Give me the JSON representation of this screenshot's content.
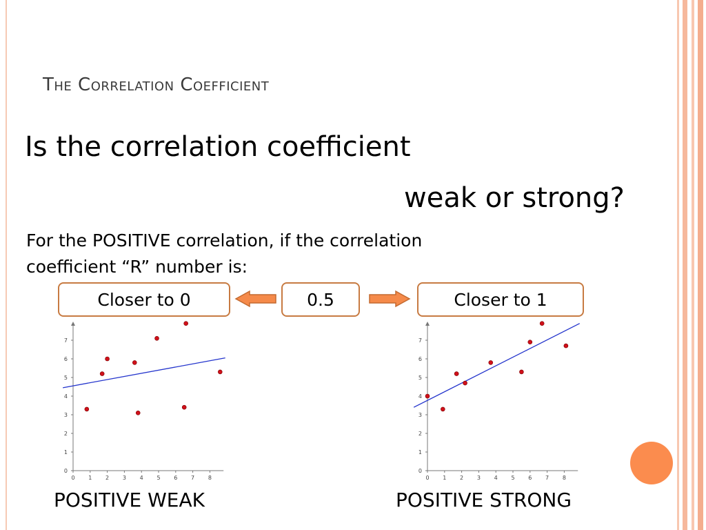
{
  "slide": {
    "title": "The Correlation Coefficient",
    "question_line1": "Is the correlation coefficient",
    "question_line2": "weak or strong?",
    "body_line1": "For the POSITIVE correlation, if the correlation",
    "body_line2": "coefficient “R” number is:"
  },
  "scale": {
    "left_label": "Closer to 0",
    "middle_label": "0.5",
    "right_label": "Closer to 1"
  },
  "colors": {
    "accent_orange": "#fb8c4e",
    "box_border": "#c77a41",
    "arrow_fill": "#f58a4a",
    "point_red": "#d0101a",
    "trend_blue": "#2233cc"
  },
  "chart_data": [
    {
      "type": "scatter",
      "title": "",
      "caption": "POSITIVE WEAK",
      "xlim": [
        0,
        8.8
      ],
      "ylim": [
        0,
        7.8
      ],
      "x_ticks": [
        "0",
        "1",
        "2",
        "3",
        "4",
        "5",
        "6",
        "7",
        "8"
      ],
      "y_ticks": [
        "0",
        "1",
        "2",
        "3",
        "4",
        "5",
        "6",
        "7"
      ],
      "points": [
        {
          "x": 0.8,
          "y": 3.3
        },
        {
          "x": 1.7,
          "y": 5.2
        },
        {
          "x": 2.0,
          "y": 6.0
        },
        {
          "x": 3.6,
          "y": 5.8
        },
        {
          "x": 3.8,
          "y": 3.1
        },
        {
          "x": 4.9,
          "y": 7.1
        },
        {
          "x": 6.5,
          "y": 3.4
        },
        {
          "x": 6.6,
          "y": 7.9
        },
        {
          "x": 8.6,
          "y": 5.3
        }
      ],
      "trendline": {
        "x1": -0.6,
        "y1": 4.45,
        "x2": 8.9,
        "y2": 6.05
      }
    },
    {
      "type": "scatter",
      "title": "",
      "caption": "POSITIVE STRONG",
      "xlim": [
        0,
        8.8
      ],
      "ylim": [
        0,
        7.8
      ],
      "x_ticks": [
        "0",
        "1",
        "2",
        "3",
        "4",
        "5",
        "6",
        "7",
        "8"
      ],
      "y_ticks": [
        "0",
        "1",
        "2",
        "3",
        "4",
        "5",
        "6",
        "7"
      ],
      "points": [
        {
          "x": 0.0,
          "y": 4.0
        },
        {
          "x": 0.9,
          "y": 3.3
        },
        {
          "x": 1.7,
          "y": 5.2
        },
        {
          "x": 2.2,
          "y": 4.7
        },
        {
          "x": 3.7,
          "y": 5.8
        },
        {
          "x": 5.5,
          "y": 5.3
        },
        {
          "x": 6.0,
          "y": 6.9
        },
        {
          "x": 6.7,
          "y": 7.9
        },
        {
          "x": 8.1,
          "y": 6.7
        }
      ],
      "trendline": {
        "x1": -0.8,
        "y1": 3.4,
        "x2": 8.9,
        "y2": 7.9
      }
    }
  ]
}
